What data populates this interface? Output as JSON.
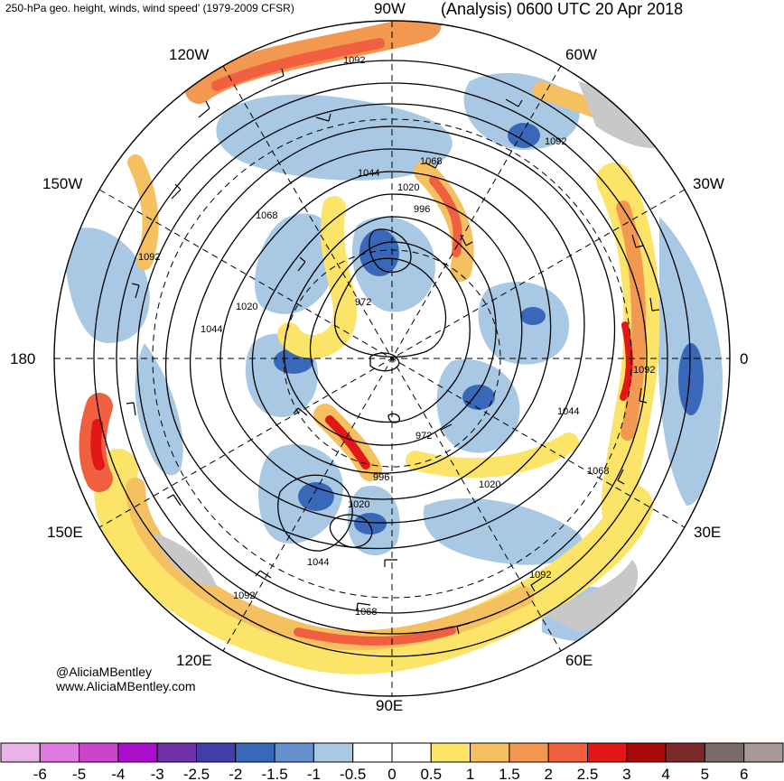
{
  "header": {
    "title_left": "250-hPa geo. height, winds, wind speed' (1979-2009 CFSR)",
    "title_right": "(Analysis) 0600 UTC 20 Apr 2018"
  },
  "longitude_labels": {
    "lon_90w": "90W",
    "lon_60w": "60W",
    "lon_120w": "120W",
    "lon_150w": "150W",
    "lon_30w": "30W",
    "lon_180": "180",
    "lon_0": "0",
    "lon_150e": "150E",
    "lon_30e": "30E",
    "lon_120e": "120E",
    "lon_60e": "60E",
    "lon_90e": "90E"
  },
  "contour_labels": {
    "c1092_top": "1092",
    "c1092_ne": "1092",
    "c1068_n": "1068",
    "c1044_n": "1044",
    "c1020_n": "1020",
    "c996_n": "996",
    "c1068_w": "1068",
    "c1092_w": "1092",
    "c1020_w": "1020",
    "c1044_w": "1044",
    "c972_c": "972",
    "c1092_e": "1092",
    "c1044_e": "1044",
    "c1068_se": "1068",
    "c972_s": "972",
    "c996_s": "996",
    "c1020_s": "1020",
    "c1020_se": "1020",
    "c1044_s": "1044",
    "c1092_sw": "1092",
    "c1092_s": "1092",
    "c1068_bottom": "1068"
  },
  "credit": {
    "twitter": "@AliciaMBentley",
    "website": "www.AliciaMBentley.com"
  },
  "colorbar": {
    "colors": [
      "#e8b4e8",
      "#e07ae0",
      "#cc44cc",
      "#aa10cc",
      "#7030a8",
      "#4040a8",
      "#3a68b8",
      "#6690cc",
      "#a8c8e4",
      "#ffffff",
      "#ffffff",
      "#fce468",
      "#f4c060",
      "#f29850",
      "#f06040",
      "#e21818",
      "#a80a0a",
      "#7a2a2a",
      "#7a6a6a",
      "#a89898"
    ],
    "labels": [
      "-6",
      "-5",
      "-4",
      "-3",
      "-2.5",
      "-2",
      "-1.5",
      "-1",
      "-0.5",
      "0",
      "0.5",
      "1",
      "1.5",
      "2",
      "2.5",
      "3",
      "4",
      "5",
      "6"
    ]
  }
}
